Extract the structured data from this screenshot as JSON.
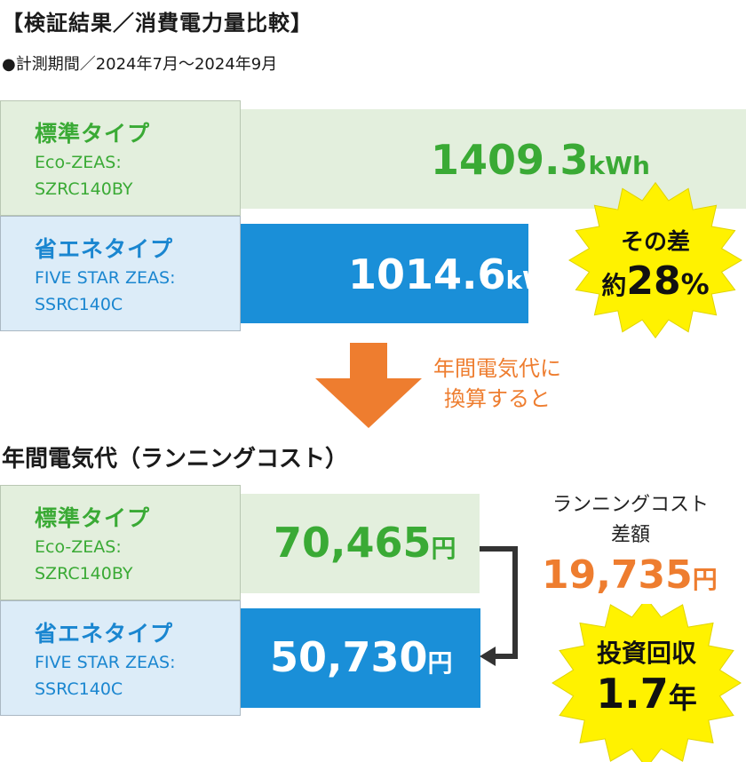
{
  "header": {
    "title": "【検証結果／消費電力量比較】",
    "period": "●計測期間／2024年7月〜2024年9月"
  },
  "chart_data": [
    {
      "type": "bar",
      "orientation": "horizontal",
      "categories": [
        "標準タイプ",
        "省エネタイプ"
      ],
      "models": [
        "Eco-ZEAS: SZRC140BY",
        "FIVE STAR ZEAS: SSRC140C"
      ],
      "values": [
        1409.3,
        1014.6
      ],
      "unit": "kWh",
      "value_labels": [
        "1409.3",
        "1014.6"
      ],
      "colors": [
        "#e3efdd",
        "#1a8fd8"
      ]
    },
    {
      "type": "bar",
      "orientation": "horizontal",
      "title": "年間電気代（ランニングコスト）",
      "categories": [
        "標準タイプ",
        "省エネタイプ"
      ],
      "models": [
        "Eco-ZEAS: SZRC140BY",
        "FIVE STAR ZEAS: SSRC140C"
      ],
      "values": [
        70465,
        50730
      ],
      "unit": "円",
      "value_labels": [
        "70,465",
        "50,730"
      ],
      "colors": [
        "#e3efdd",
        "#1a8fd8"
      ]
    }
  ],
  "energy": {
    "standard": {
      "name": "標準タイプ",
      "model1": "Eco-ZEAS:",
      "model2": "SZRC140BY",
      "value": "1409.3",
      "unit": "kWh"
    },
    "eco": {
      "name": "省エネタイプ",
      "model1": "FIVE STAR ZEAS:",
      "model2": "SSRC140C",
      "value": "1014.6",
      "unit": "kWh"
    },
    "badge": {
      "line1": "その差",
      "prefix": "約",
      "value": "28",
      "unit": "%"
    }
  },
  "conversion": {
    "line1": "年間電気代に",
    "line2": "換算すると"
  },
  "cost": {
    "title": "年間電気代（ランニングコスト）",
    "standard": {
      "name": "標準タイプ",
      "model1": "Eco-ZEAS:",
      "model2": "SZRC140BY",
      "value": "70,465",
      "unit": "円"
    },
    "eco": {
      "name": "省エネタイプ",
      "model1": "FIVE STAR ZEAS:",
      "model2": "SSRC140C",
      "value": "50,730",
      "unit": "円"
    },
    "diff_label1": "ランニングコスト",
    "diff_label2": "差額",
    "diff_value": "19,735",
    "diff_unit": "円",
    "badge": {
      "line1": "投資回収",
      "value": "1.7",
      "unit": "年"
    }
  },
  "colors": {
    "green_text": "#3aaa35",
    "blue_text": "#1a86d0",
    "blue_bar": "#1a8fd8",
    "green_bar": "#e3efdd",
    "orange": "#ee7d2f",
    "burst": "#fff200"
  }
}
